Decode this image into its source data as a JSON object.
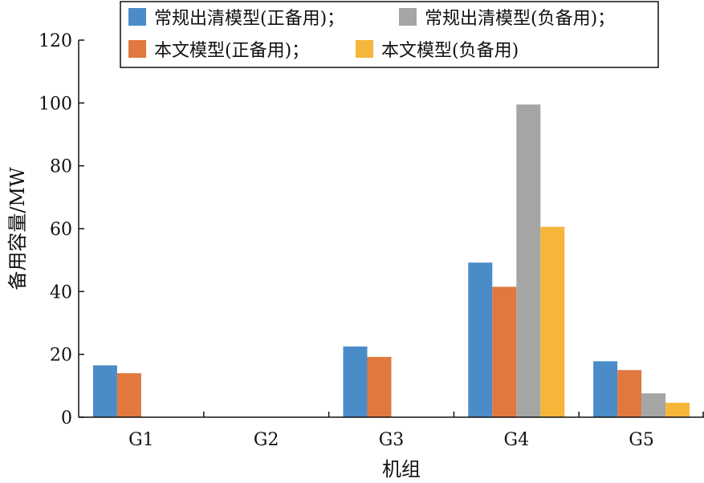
{
  "chart_data": {
    "type": "bar",
    "xlabel": "机组",
    "ylabel": "备用容量/MW",
    "categories": [
      "G1",
      "G2",
      "G3",
      "G4",
      "G5"
    ],
    "ylim": [
      0,
      120
    ],
    "yticks": [
      0,
      20,
      40,
      60,
      80,
      100,
      120
    ],
    "grid": false,
    "legend_position": "top-right",
    "series": [
      {
        "name": "常规出清模型(正备用)；",
        "color": "#4a8cc8",
        "values": [
          16.5,
          0,
          22.5,
          49.2,
          17.8
        ]
      },
      {
        "name": "本文模型(正备用)；",
        "color": "#e07840",
        "values": [
          14.0,
          0,
          19.2,
          41.5,
          15.0
        ]
      },
      {
        "name": "常规出清模型(负备用)；",
        "color": "#a5a5a5",
        "values": [
          0,
          0,
          0,
          99.5,
          7.6
        ]
      },
      {
        "name": "本文模型(负备用)",
        "color": "#f5b63a",
        "values": [
          0,
          0,
          0,
          60.6,
          4.6
        ]
      }
    ]
  }
}
